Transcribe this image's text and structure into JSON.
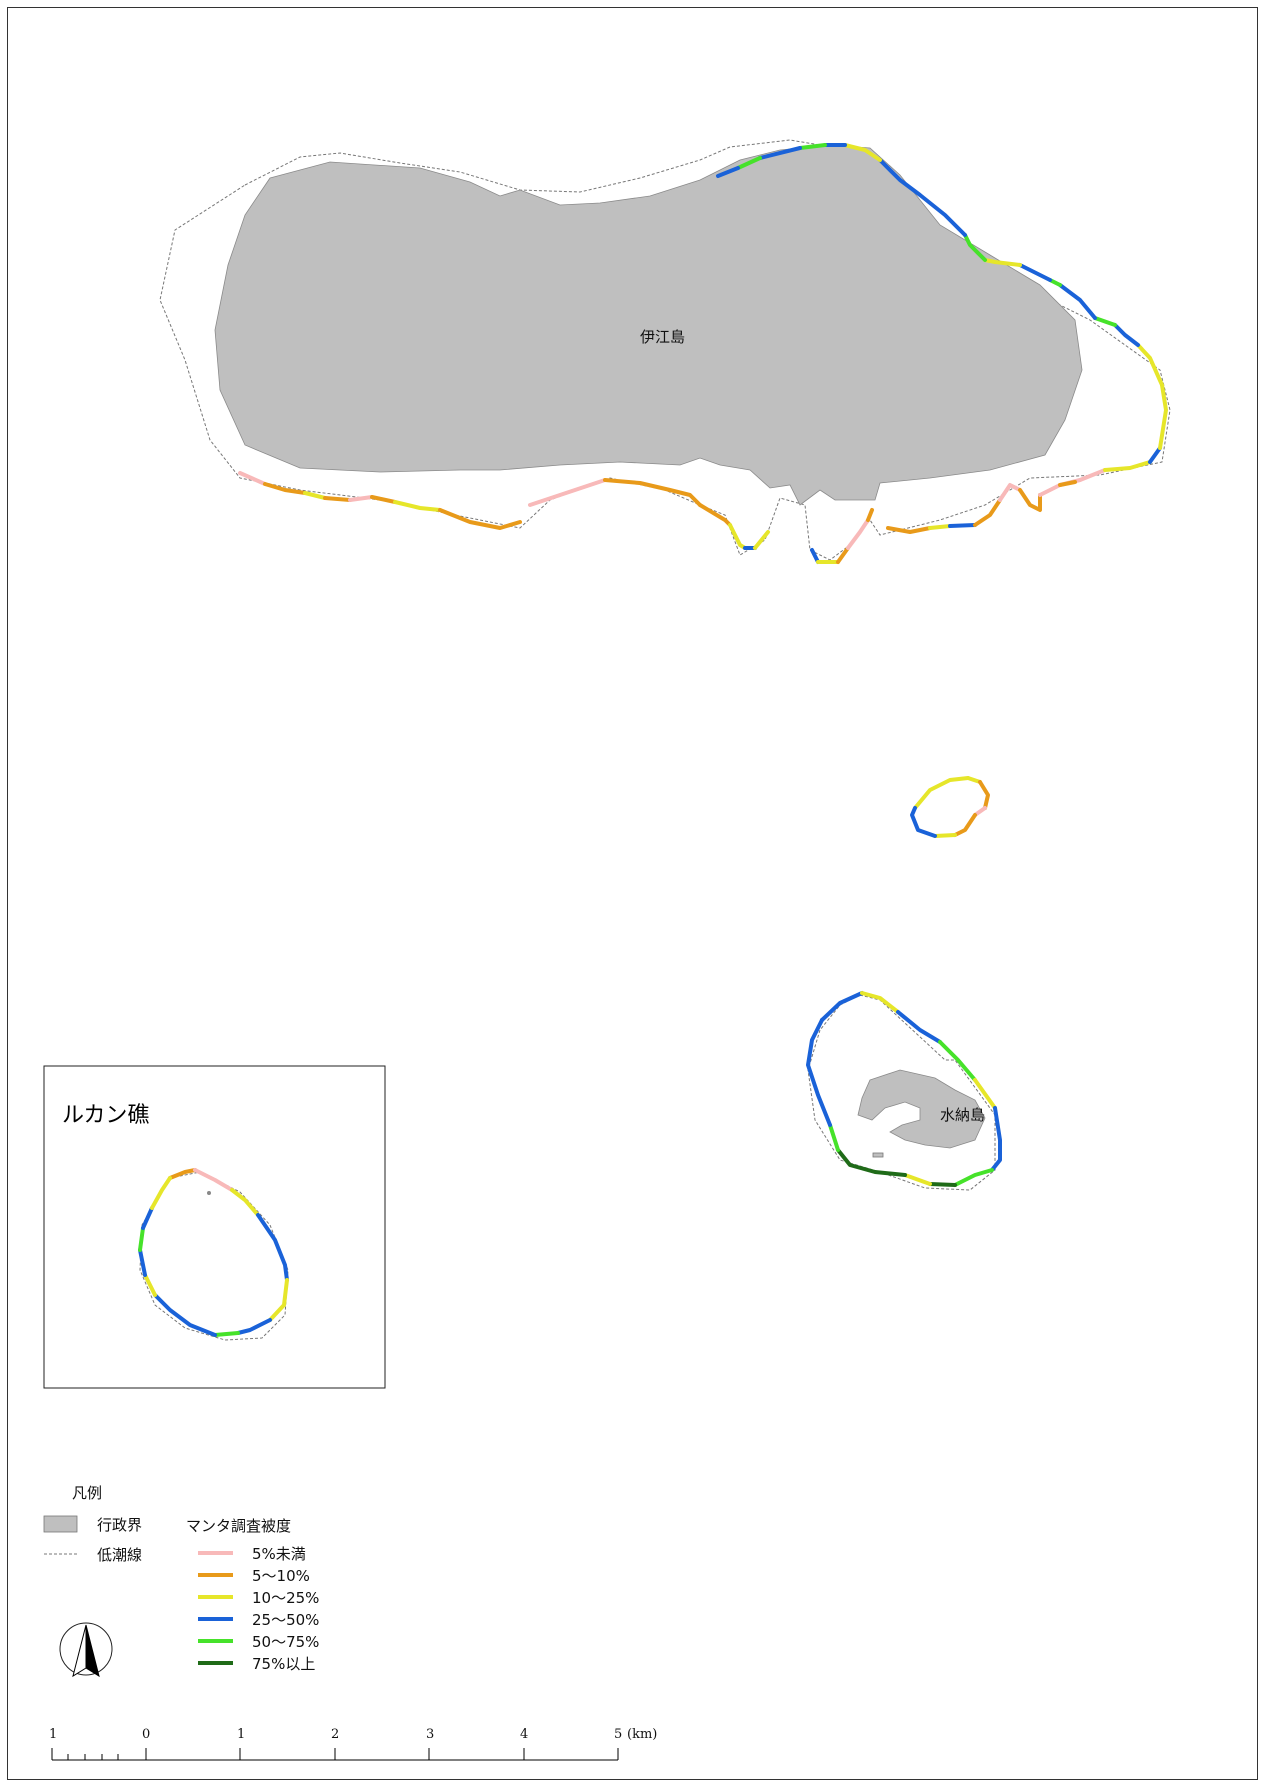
{
  "colors": {
    "land": "#bfbfbf",
    "lt5": "#f8b9b9",
    "c5_10": "#e89a1a",
    "c10_25": "#e6e62a",
    "c25_50": "#1a62d8",
    "c50_75": "#46e22a",
    "c75up": "#1f6b18"
  },
  "labels": {
    "ie_island": "伊江島",
    "minna_island": "水納島",
    "inset_title": "ルカン礁"
  },
  "legend": {
    "title": "凡例",
    "admin_boundary": "行政界",
    "low_tide_line": "低潮線",
    "manta_title": "マンタ調査被度",
    "classes": [
      "5%未満",
      "5〜10%",
      "10〜25%",
      "25〜50%",
      "50〜75%",
      "75%以上"
    ]
  },
  "scale_bar": {
    "ticks": [
      "1",
      "0",
      "1",
      "2",
      "3",
      "4",
      "5"
    ],
    "unit": "(km)"
  },
  "north_arrow": {
    "icon": "north-arrow-icon"
  }
}
